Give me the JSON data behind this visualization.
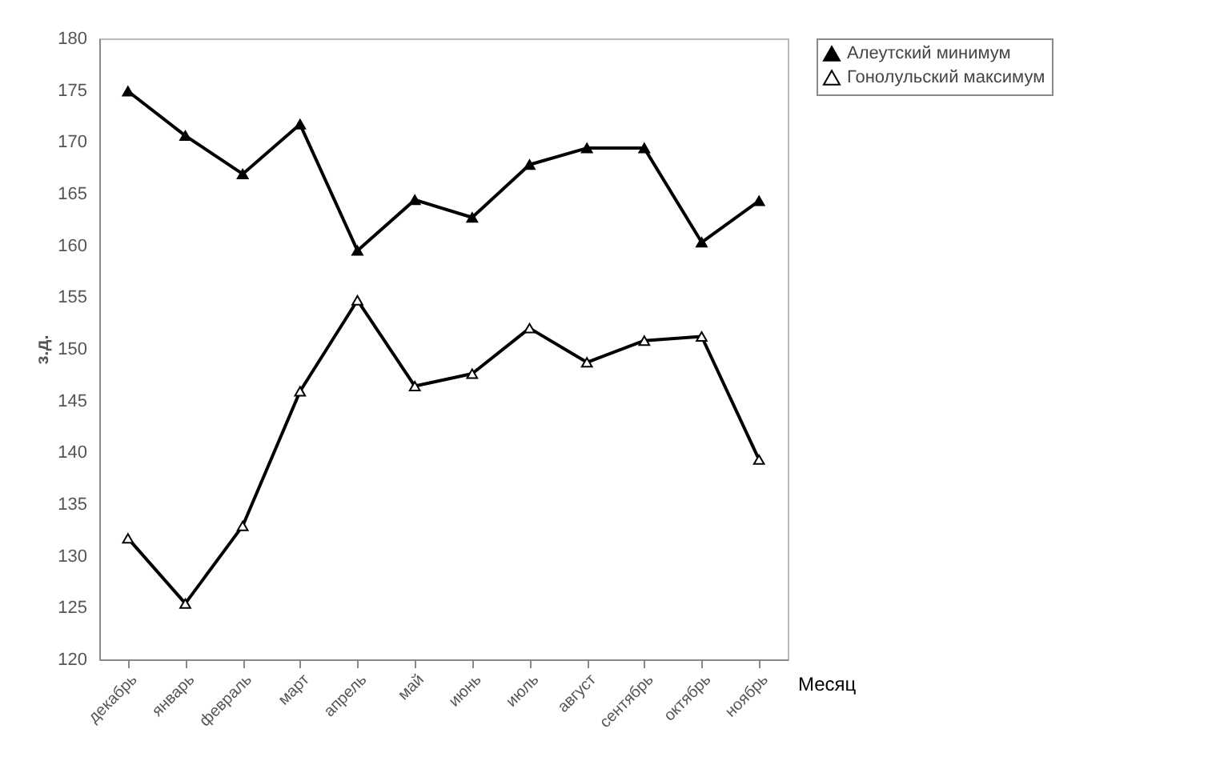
{
  "chart_data": {
    "type": "line",
    "xlabel": "Месяц",
    "ylabel": "з.д.",
    "categories": [
      "декабрь",
      "январь",
      "февраль",
      "март",
      "апрель",
      "май",
      "июнь",
      "июль",
      "август",
      "сентябрь",
      "октябрь",
      "ноябрь"
    ],
    "series": [
      {
        "name": "Алеутский минимум",
        "color": "#000000",
        "values": [
          174.9,
          170.6,
          166.9,
          171.7,
          159.5,
          164.4,
          162.7,
          167.8,
          169.4,
          169.4,
          160.3,
          164.3
        ]
      },
      {
        "name": "Гонолульский максимум",
        "color": "#000000",
        "values": [
          131.7,
          125.4,
          132.9,
          145.9,
          154.7,
          146.4,
          147.6,
          152.0,
          148.7,
          150.8,
          151.2,
          139.3
        ]
      }
    ],
    "ylim": [
      120,
      180
    ],
    "yticks": [
      120,
      125,
      130,
      135,
      140,
      145,
      150,
      155,
      160,
      165,
      170,
      175,
      180
    ],
    "grid": false,
    "legend": "right",
    "marker": "triangle",
    "line_style": "solid"
  }
}
